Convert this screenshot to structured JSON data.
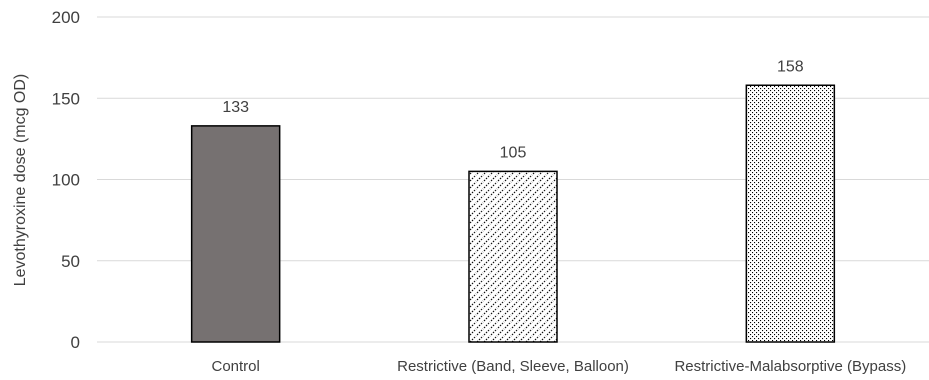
{
  "chart_data": {
    "type": "bar",
    "title": "",
    "xlabel": "",
    "ylabel": "Levothyroxine dose (mcg OD)",
    "ylim": [
      0,
      200
    ],
    "yticks": [
      0,
      50,
      100,
      150,
      200
    ],
    "grid": true,
    "categories": [
      "Control",
      "Restrictive (Band, Sleeve, Balloon)",
      "Restrictive-Malabsorptive (Bypass)"
    ],
    "values": [
      133,
      105,
      158
    ],
    "data_labels": [
      "133",
      "105",
      "158"
    ],
    "fills": [
      "solid",
      "diagonal-hatch",
      "dots"
    ],
    "colors": {
      "solid_bar": "#767171",
      "outline": "#000000",
      "grid": "#d9d9d9",
      "text": "#404040"
    }
  }
}
